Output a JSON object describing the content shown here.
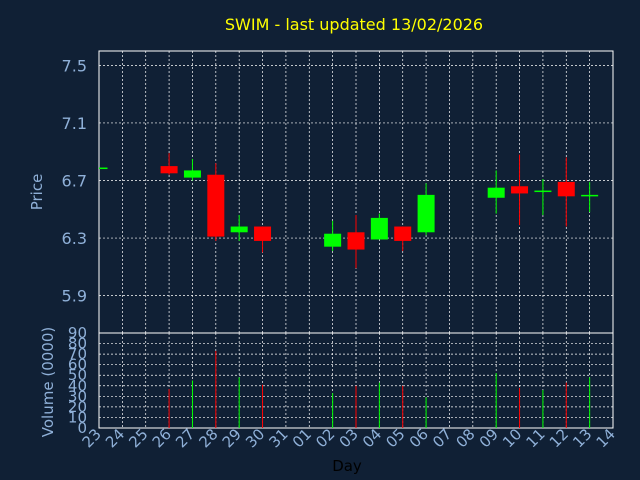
{
  "title": "SWIM - last updated 13/02/2026",
  "colors": {
    "background": "#102035",
    "up": "#00ff00",
    "down": "#ff0000",
    "title": "#ffff00",
    "label": "#8fb0d8",
    "grid": "#ffffff"
  },
  "chart_data": [
    {
      "type": "candlestick",
      "ylabel": "Price",
      "ylim": [
        5.64,
        7.6
      ],
      "yticks": [
        "5.9",
        "6.3",
        "6.7",
        "7.1",
        "7.5"
      ],
      "grid": true,
      "candles": [
        {
          "day": "23",
          "open": 6.79,
          "high": 6.79,
          "low": 6.79,
          "close": 6.79
        },
        {
          "day": "26",
          "open": 6.8,
          "high": 6.89,
          "low": 6.74,
          "close": 6.75
        },
        {
          "day": "27",
          "open": 6.72,
          "high": 6.85,
          "low": 6.7,
          "close": 6.77
        },
        {
          "day": "28",
          "open": 6.74,
          "high": 6.82,
          "low": 6.28,
          "close": 6.31
        },
        {
          "day": "29",
          "open": 6.34,
          "high": 6.46,
          "low": 6.28,
          "close": 6.38
        },
        {
          "day": "30",
          "open": 6.38,
          "high": 6.38,
          "low": 6.2,
          "close": 6.28
        },
        {
          "day": "02",
          "open": 6.24,
          "high": 6.42,
          "low": 6.21,
          "close": 6.33
        },
        {
          "day": "03",
          "open": 6.34,
          "high": 6.46,
          "low": 6.09,
          "close": 6.22
        },
        {
          "day": "04",
          "open": 6.29,
          "high": 6.47,
          "low": 6.29,
          "close": 6.44
        },
        {
          "day": "05",
          "open": 6.38,
          "high": 6.38,
          "low": 6.21,
          "close": 6.28
        },
        {
          "day": "06",
          "open": 6.34,
          "high": 6.68,
          "low": 6.32,
          "close": 6.6
        },
        {
          "day": "09",
          "open": 6.58,
          "high": 6.77,
          "low": 6.47,
          "close": 6.65
        },
        {
          "day": "10",
          "open": 6.66,
          "high": 6.88,
          "low": 6.39,
          "close": 6.61
        },
        {
          "day": "11",
          "open": 6.62,
          "high": 6.71,
          "low": 6.46,
          "close": 6.63
        },
        {
          "day": "12",
          "open": 6.69,
          "high": 6.86,
          "low": 6.38,
          "close": 6.59
        },
        {
          "day": "13",
          "open": 6.59,
          "high": 6.69,
          "low": 6.48,
          "close": 6.6
        }
      ]
    },
    {
      "type": "bar",
      "ylabel": "Volume (0000)",
      "xlabel": "Day",
      "ylim": [
        0,
        90
      ],
      "yticks": [
        "0",
        "10",
        "20",
        "30",
        "40",
        "50",
        "60",
        "70",
        "80",
        "90"
      ],
      "grid": true,
      "categories": [
        "23",
        "24",
        "25",
        "26",
        "27",
        "28",
        "29",
        "30",
        "31",
        "01",
        "02",
        "03",
        "04",
        "05",
        "06",
        "07",
        "08",
        "09",
        "10",
        "11",
        "12",
        "13",
        "14"
      ],
      "values": [
        {
          "day": "26",
          "value": 37,
          "dir": "down"
        },
        {
          "day": "27",
          "value": 45,
          "dir": "up"
        },
        {
          "day": "28",
          "value": 73,
          "dir": "down"
        },
        {
          "day": "29",
          "value": 48,
          "dir": "up"
        },
        {
          "day": "30",
          "value": 41,
          "dir": "down"
        },
        {
          "day": "02",
          "value": 33,
          "dir": "up"
        },
        {
          "day": "03",
          "value": 40,
          "dir": "down"
        },
        {
          "day": "04",
          "value": 43,
          "dir": "up"
        },
        {
          "day": "05",
          "value": 40,
          "dir": "down"
        },
        {
          "day": "06",
          "value": 29,
          "dir": "up"
        },
        {
          "day": "09",
          "value": 52,
          "dir": "up"
        },
        {
          "day": "10",
          "value": 38,
          "dir": "down"
        },
        {
          "day": "11",
          "value": 36,
          "dir": "up"
        },
        {
          "day": "12",
          "value": 43,
          "dir": "down"
        },
        {
          "day": "13",
          "value": 48,
          "dir": "up"
        }
      ]
    }
  ]
}
